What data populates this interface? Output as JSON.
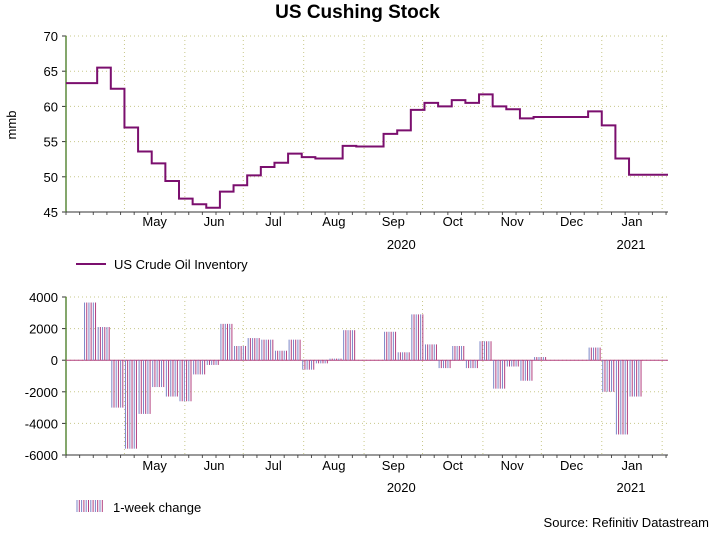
{
  "title": "US Cushing Stock",
  "source": "Source: Refinitiv Datastream",
  "colors": {
    "line": "#7b0f6e",
    "bar_a": "#7b86c8",
    "bar_b": "#b3407f",
    "grid": "#c8c88a",
    "axis": "#5b8a3c"
  },
  "months": [
    "May",
    "Jun",
    "Jul",
    "Aug",
    "Sep",
    "Oct",
    "Nov",
    "Dec",
    "Jan"
  ],
  "years": [
    "2020",
    "2021"
  ],
  "chart_data": [
    {
      "type": "line",
      "title": "US Cushing Stock",
      "ylabel": "mmb",
      "ylim": [
        45,
        70
      ],
      "yticks": [
        45,
        50,
        55,
        60,
        65,
        70
      ],
      "legend": "US Crude Oil Inventory",
      "series": [
        {
          "name": "US Crude Oil Inventory",
          "x": [
            "2020-04-10",
            "2020-04-17",
            "2020-04-24",
            "2020-05-01",
            "2020-05-08",
            "2020-05-15",
            "2020-05-22",
            "2020-05-29",
            "2020-06-05",
            "2020-06-12",
            "2020-06-19",
            "2020-06-26",
            "2020-07-03",
            "2020-07-10",
            "2020-07-17",
            "2020-07-24",
            "2020-07-31",
            "2020-08-07",
            "2020-08-14",
            "2020-08-21",
            "2020-08-28",
            "2020-09-04",
            "2020-09-11",
            "2020-09-18",
            "2020-09-25",
            "2020-10-02",
            "2020-10-09",
            "2020-10-16",
            "2020-10-23",
            "2020-10-30",
            "2020-11-06",
            "2020-11-13",
            "2020-11-20",
            "2020-11-27",
            "2020-12-04",
            "2020-12-11",
            "2020-12-18",
            "2020-12-25",
            "2021-01-01",
            "2021-01-08",
            "2021-01-15",
            "2021-01-22",
            "2021-01-29"
          ],
          "values": [
            63.3,
            65.5,
            62.5,
            57.0,
            53.6,
            51.9,
            49.4,
            46.9,
            46.1,
            45.6,
            47.9,
            48.8,
            50.2,
            51.4,
            52.0,
            53.3,
            52.8,
            52.6,
            52.6,
            54.4,
            54.3,
            54.3,
            56.1,
            56.6,
            59.5,
            60.5,
            60.0,
            60.9,
            60.5,
            61.7,
            60.0,
            59.6,
            58.3,
            58.5,
            58.5,
            58.5,
            58.5,
            59.3,
            57.3,
            52.6,
            50.3,
            50.3,
            50.3
          ]
        }
      ]
    },
    {
      "type": "bar",
      "ylim": [
        -6000,
        4000
      ],
      "yticks": [
        -6000,
        -4000,
        -2000,
        0,
        2000,
        4000
      ],
      "legend": "1-week change",
      "series": [
        {
          "name": "1-week change",
          "x": [
            "2020-04-10",
            "2020-04-17",
            "2020-04-24",
            "2020-05-01",
            "2020-05-08",
            "2020-05-15",
            "2020-05-22",
            "2020-05-29",
            "2020-06-05",
            "2020-06-12",
            "2020-06-19",
            "2020-06-26",
            "2020-07-03",
            "2020-07-10",
            "2020-07-17",
            "2020-07-24",
            "2020-07-31",
            "2020-08-07",
            "2020-08-14",
            "2020-08-21",
            "2020-08-28",
            "2020-09-04",
            "2020-09-11",
            "2020-09-18",
            "2020-09-25",
            "2020-10-02",
            "2020-10-09",
            "2020-10-16",
            "2020-10-23",
            "2020-10-30",
            "2020-11-06",
            "2020-11-13",
            "2020-11-20",
            "2020-11-27",
            "2020-12-04",
            "2020-12-11",
            "2020-12-18",
            "2020-12-25",
            "2021-01-01",
            "2021-01-08",
            "2021-01-15",
            "2021-01-22"
          ],
          "values": [
            3650,
            2100,
            -3000,
            -5600,
            -3400,
            -1700,
            -2300,
            -2600,
            -900,
            -300,
            2300,
            900,
            1400,
            1300,
            600,
            1300,
            -600,
            -200,
            100,
            1900,
            0,
            0,
            1800,
            500,
            2900,
            1000,
            -500,
            900,
            -500,
            1200,
            -1800,
            -400,
            -1300,
            200,
            0,
            0,
            0,
            800,
            -2000,
            -4700,
            -2300,
            0
          ]
        }
      ]
    }
  ]
}
